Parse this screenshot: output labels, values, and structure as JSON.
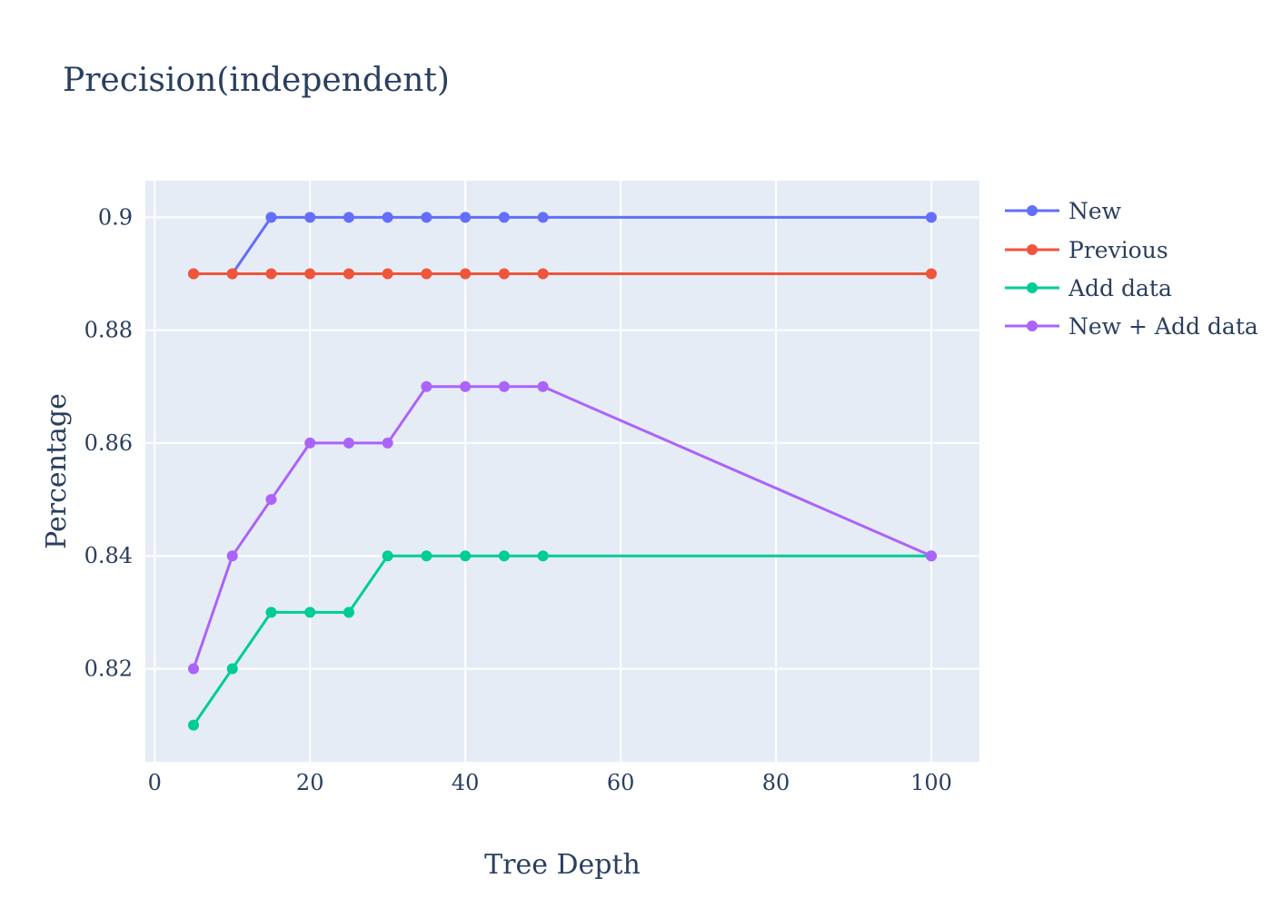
{
  "chart_data": {
    "type": "line",
    "title": "Precision(independent)",
    "xlabel": "Tree Depth",
    "ylabel": "Percentage",
    "xlim": [
      -1.2,
      106.2
    ],
    "ylim": [
      0.8035,
      0.9065
    ],
    "x_ticks": [
      0,
      20,
      40,
      60,
      80,
      100
    ],
    "x_tick_labels": [
      "0",
      "20",
      "40",
      "60",
      "80",
      "100"
    ],
    "y_ticks": [
      0.82,
      0.84,
      0.86,
      0.88,
      0.9
    ],
    "y_tick_labels": [
      "0.82",
      "0.84",
      "0.86",
      "0.88",
      "0.9"
    ],
    "grid": true,
    "legend_position": "top-right",
    "x": [
      5,
      10,
      15,
      20,
      25,
      30,
      35,
      40,
      45,
      50,
      100
    ],
    "series": [
      {
        "name": "New",
        "color": "#636efa",
        "values": [
          0.89,
          0.89,
          0.9,
          0.9,
          0.9,
          0.9,
          0.9,
          0.9,
          0.9,
          0.9,
          0.9
        ]
      },
      {
        "name": "Previous",
        "color": "#ef553b",
        "values": [
          0.89,
          0.89,
          0.89,
          0.89,
          0.89,
          0.89,
          0.89,
          0.89,
          0.89,
          0.89,
          0.89
        ]
      },
      {
        "name": "Add data",
        "color": "#00cc96",
        "values": [
          0.81,
          0.82,
          0.83,
          0.83,
          0.83,
          0.84,
          0.84,
          0.84,
          0.84,
          0.84,
          0.84
        ]
      },
      {
        "name": "New + Add data",
        "color": "#ab63fa",
        "values": [
          0.82,
          0.84,
          0.85,
          0.86,
          0.86,
          0.86,
          0.87,
          0.87,
          0.87,
          0.87,
          0.84
        ]
      }
    ],
    "plot_background": "#e5ecf6",
    "grid_color": "#ffffff"
  }
}
